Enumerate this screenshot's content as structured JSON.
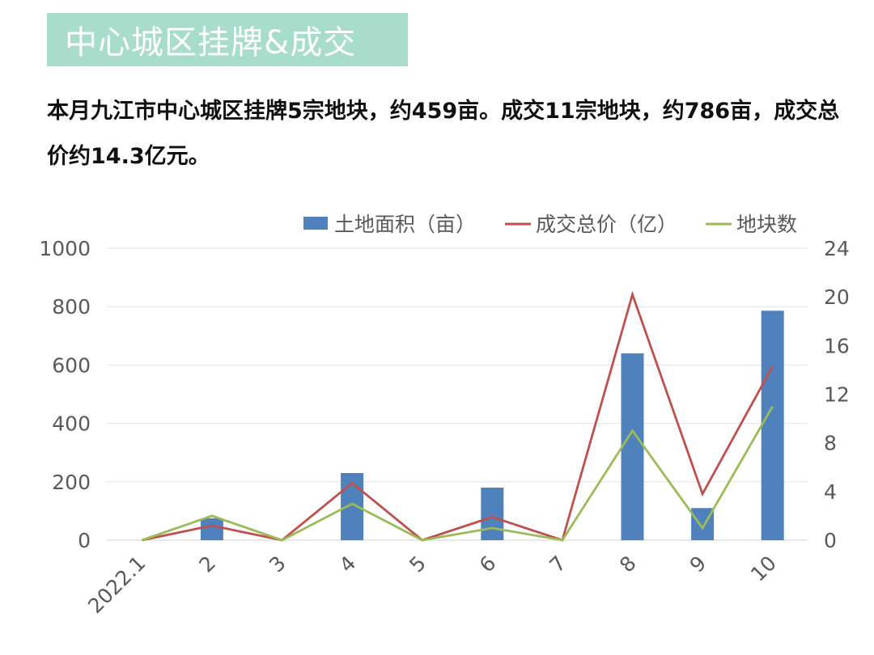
{
  "header": {
    "title": "中心城区挂牌&成交",
    "title_bg": "#a8dccb",
    "summary": "本月九江市中心城区挂牌5宗地块，约459亩。成交11宗地块，约786亩，成交总价约14.3亿元。"
  },
  "chart_data": {
    "type": "bar",
    "categories": [
      "2022.1",
      "2",
      "3",
      "4",
      "5",
      "6",
      "7",
      "8",
      "9",
      "10"
    ],
    "series": [
      {
        "name": "土地面积（亩）",
        "type": "bar",
        "axis": "left",
        "color": "#4f81bd",
        "values": [
          0,
          75,
          0,
          230,
          0,
          180,
          0,
          640,
          110,
          786
        ]
      },
      {
        "name": "成交总价（亿）",
        "type": "line",
        "axis": "right",
        "color": "#c0504d",
        "values": [
          0,
          1.2,
          0,
          4.7,
          0,
          1.9,
          0,
          20.2,
          3.8,
          14.3
        ]
      },
      {
        "name": "地块数",
        "type": "line",
        "axis": "right",
        "color": "#9bbb59",
        "values": [
          0,
          2,
          0,
          3,
          0,
          1,
          0,
          9,
          1,
          11
        ]
      }
    ],
    "left_axis": {
      "min": 0,
      "max": 1000,
      "ticks": [
        0,
        200,
        400,
        600,
        800,
        1000
      ]
    },
    "right_axis": {
      "min": 0,
      "max": 24,
      "ticks": [
        0,
        4,
        8,
        12,
        16,
        20,
        24
      ]
    },
    "grid": true,
    "legend": "top-right",
    "xlabel": "",
    "ylabel": ""
  }
}
